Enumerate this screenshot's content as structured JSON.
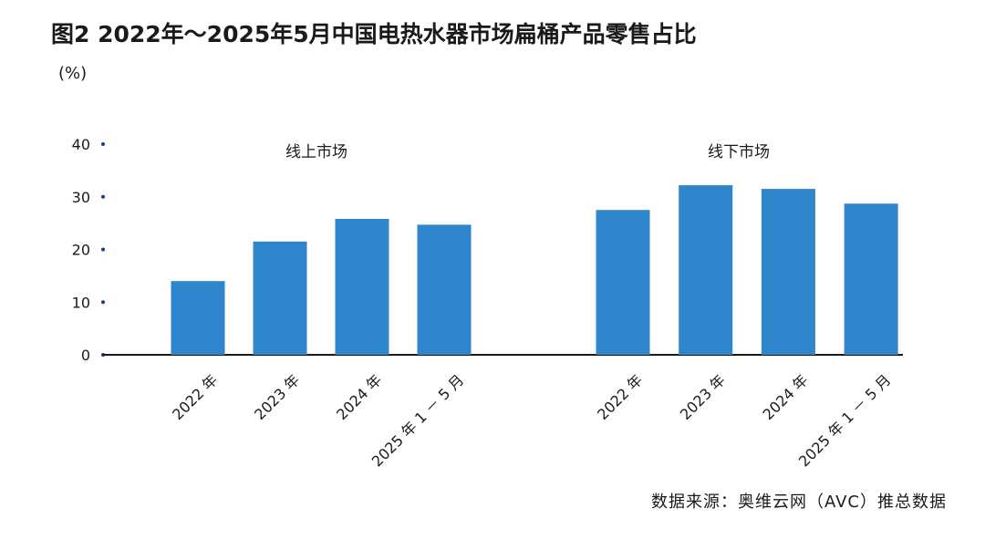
{
  "title": "图2 2022年～2025年5月中国电热水器市场扁桶产品零售占比",
  "source": "数据来源：奥维云网（AVC）推总数据",
  "chart_data": {
    "type": "bar",
    "unit_label": "(%)",
    "ylim": [
      0,
      40
    ],
    "yticks": [
      0,
      10,
      20,
      30,
      40
    ],
    "grid": false,
    "bar_color": "#2f86cd",
    "categories": [
      "2022 年",
      "2023 年",
      "2024 年",
      "2025 年 1 － 5 月"
    ],
    "groups": [
      {
        "name": "线上市场",
        "values": [
          14.0,
          21.5,
          25.8,
          24.7
        ]
      },
      {
        "name": "线下市场",
        "values": [
          27.5,
          32.2,
          31.5,
          28.7
        ]
      }
    ]
  }
}
